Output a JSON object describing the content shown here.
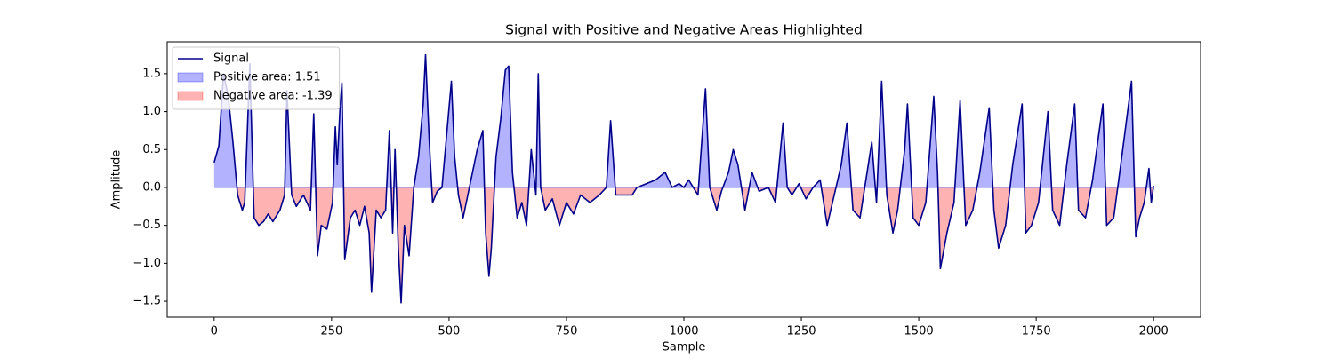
{
  "chart_data": {
    "type": "line",
    "title": "Signal with Positive and Negative Areas Highlighted",
    "xlabel": "Sample",
    "ylabel": "Amplitude",
    "x": [
      0,
      10,
      20,
      30,
      40,
      50,
      60,
      65,
      76,
      85,
      95,
      105,
      115,
      125,
      140,
      150,
      155,
      165,
      175,
      190,
      205,
      212,
      220,
      228,
      240,
      252,
      258,
      262,
      268,
      272,
      278,
      290,
      300,
      310,
      320,
      330,
      335,
      345,
      355,
      365,
      373,
      380,
      385,
      392,
      398,
      405,
      415,
      425,
      435,
      445,
      450,
      458,
      465,
      475,
      485,
      495,
      505,
      512,
      520,
      530,
      540,
      550,
      560,
      572,
      578,
      585,
      590,
      600,
      610,
      620,
      627,
      635,
      645,
      655,
      665,
      675,
      685,
      690,
      695,
      705,
      720,
      735,
      750,
      765,
      780,
      800,
      820,
      835,
      844,
      855,
      870,
      890,
      900,
      920,
      940,
      960,
      975,
      990,
      1000,
      1010,
      1030,
      1046,
      1055,
      1070,
      1080,
      1095,
      1105,
      1115,
      1130,
      1145,
      1160,
      1180,
      1195,
      1211,
      1220,
      1230,
      1245,
      1260,
      1275,
      1290,
      1305,
      1320,
      1335,
      1347,
      1360,
      1375,
      1390,
      1400,
      1410,
      1421,
      1432,
      1445,
      1455,
      1470,
      1476,
      1488,
      1500,
      1515,
      1532,
      1540,
      1546,
      1560,
      1575,
      1588,
      1600,
      1615,
      1630,
      1650,
      1660,
      1670,
      1685,
      1700,
      1720,
      1728,
      1740,
      1755,
      1775,
      1785,
      1800,
      1815,
      1832,
      1840,
      1855,
      1870,
      1892,
      1900,
      1915,
      1930,
      1953,
      1962,
      1970,
      1980,
      1990,
      1995,
      2000
    ],
    "series": [
      {
        "name": "Signal",
        "color": "#00008b",
        "values": [
          0.33,
          0.55,
          1.5,
          1.2,
          0.6,
          -0.1,
          -0.3,
          -0.2,
          1.63,
          -0.4,
          -0.5,
          -0.45,
          -0.35,
          -0.45,
          -0.3,
          -0.1,
          1.28,
          -0.1,
          -0.25,
          -0.1,
          -0.3,
          0.97,
          -0.9,
          -0.5,
          -0.55,
          -0.2,
          0.8,
          0.3,
          1.05,
          1.38,
          -0.95,
          -0.4,
          -0.3,
          -0.5,
          -0.25,
          -0.6,
          -1.38,
          -0.3,
          -0.4,
          -0.3,
          0.75,
          -0.6,
          0.5,
          -0.8,
          -1.52,
          -0.5,
          -0.9,
          0.0,
          0.4,
          1.1,
          1.75,
          0.6,
          -0.2,
          -0.05,
          0.0,
          0.7,
          1.4,
          0.4,
          -0.1,
          -0.4,
          -0.1,
          0.2,
          0.5,
          0.75,
          -0.6,
          -1.17,
          -0.8,
          0.4,
          0.9,
          1.55,
          1.6,
          0.2,
          -0.4,
          -0.2,
          -0.5,
          0.5,
          -0.1,
          1.5,
          0.0,
          -0.3,
          -0.15,
          -0.5,
          -0.2,
          -0.35,
          -0.1,
          -0.2,
          -0.1,
          0.0,
          0.88,
          -0.1,
          -0.1,
          -0.1,
          0.0,
          0.05,
          0.1,
          0.2,
          0.0,
          0.05,
          0.0,
          0.1,
          -0.1,
          1.3,
          0.0,
          -0.3,
          -0.05,
          0.2,
          0.5,
          0.3,
          -0.3,
          0.2,
          -0.05,
          0.0,
          -0.2,
          0.85,
          0.0,
          -0.1,
          0.05,
          -0.15,
          0.0,
          0.1,
          -0.5,
          -0.1,
          0.3,
          0.85,
          -0.3,
          -0.4,
          0.2,
          0.6,
          -0.2,
          1.4,
          -0.1,
          -0.6,
          -0.3,
          0.5,
          1.1,
          -0.4,
          -0.5,
          -0.2,
          1.2,
          0.2,
          -1.07,
          -0.6,
          -0.2,
          1.15,
          -0.5,
          -0.3,
          0.2,
          1.05,
          -0.3,
          -0.8,
          -0.5,
          0.3,
          1.1,
          -0.6,
          -0.5,
          -0.2,
          1.0,
          -0.3,
          -0.5,
          0.3,
          1.1,
          -0.3,
          -0.4,
          0.1,
          1.1,
          -0.5,
          -0.4,
          0.3,
          1.4,
          -0.65,
          -0.4,
          -0.2,
          0.25,
          -0.2,
          0.02
        ]
      }
    ],
    "fills": [
      {
        "name": "Positive area: 1.51",
        "color": "#0000ff",
        "where": "positive"
      },
      {
        "name": "Negative area: -1.39",
        "color": "#ff0000",
        "where": "negative"
      }
    ],
    "fill_alpha": 0.3,
    "xlim": [
      -100,
      2100
    ],
    "ylim": [
      -1.71,
      1.92
    ],
    "xticks": [
      0,
      250,
      500,
      750,
      1000,
      1250,
      1500,
      1750,
      2000
    ],
    "yticks": [
      {
        "value": -1.5,
        "label": "−1.5"
      },
      {
        "value": -1.0,
        "label": "−1.0"
      },
      {
        "value": -0.5,
        "label": "−0.5"
      },
      {
        "value": 0,
        "label": "0.0"
      },
      0.5,
      {
        "value": 1.0,
        "label": "1.0"
      },
      1.5
    ],
    "legend": "upper left"
  }
}
